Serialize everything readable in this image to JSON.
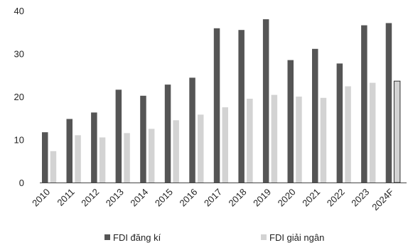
{
  "chart_data": {
    "type": "bar",
    "categories": [
      "2010",
      "2011",
      "2012",
      "2013",
      "2014",
      "2015",
      "2016",
      "2017",
      "2018",
      "2019",
      "2020",
      "2021",
      "2022",
      "2023",
      "2024F"
    ],
    "series": [
      {
        "name": "FDI đăng kí",
        "color": "#555555",
        "values": [
          11.7,
          14.8,
          16.3,
          21.6,
          20.2,
          22.8,
          24.4,
          35.9,
          35.5,
          38.0,
          28.5,
          31.1,
          27.7,
          36.6,
          37.1
        ]
      },
      {
        "name": "FDI giải ngân",
        "color": "#d3d3d3",
        "values": [
          7.3,
          11.0,
          10.5,
          11.5,
          12.5,
          14.5,
          15.8,
          17.5,
          19.5,
          20.4,
          20.0,
          19.7,
          22.4,
          23.2,
          23.6
        ]
      }
    ],
    "title": "",
    "xlabel": "",
    "ylabel": "",
    "ylim": [
      0,
      40
    ],
    "yticks": [
      "0",
      "10",
      "20",
      "30",
      "40"
    ],
    "grid": false,
    "legend": "bottom"
  }
}
